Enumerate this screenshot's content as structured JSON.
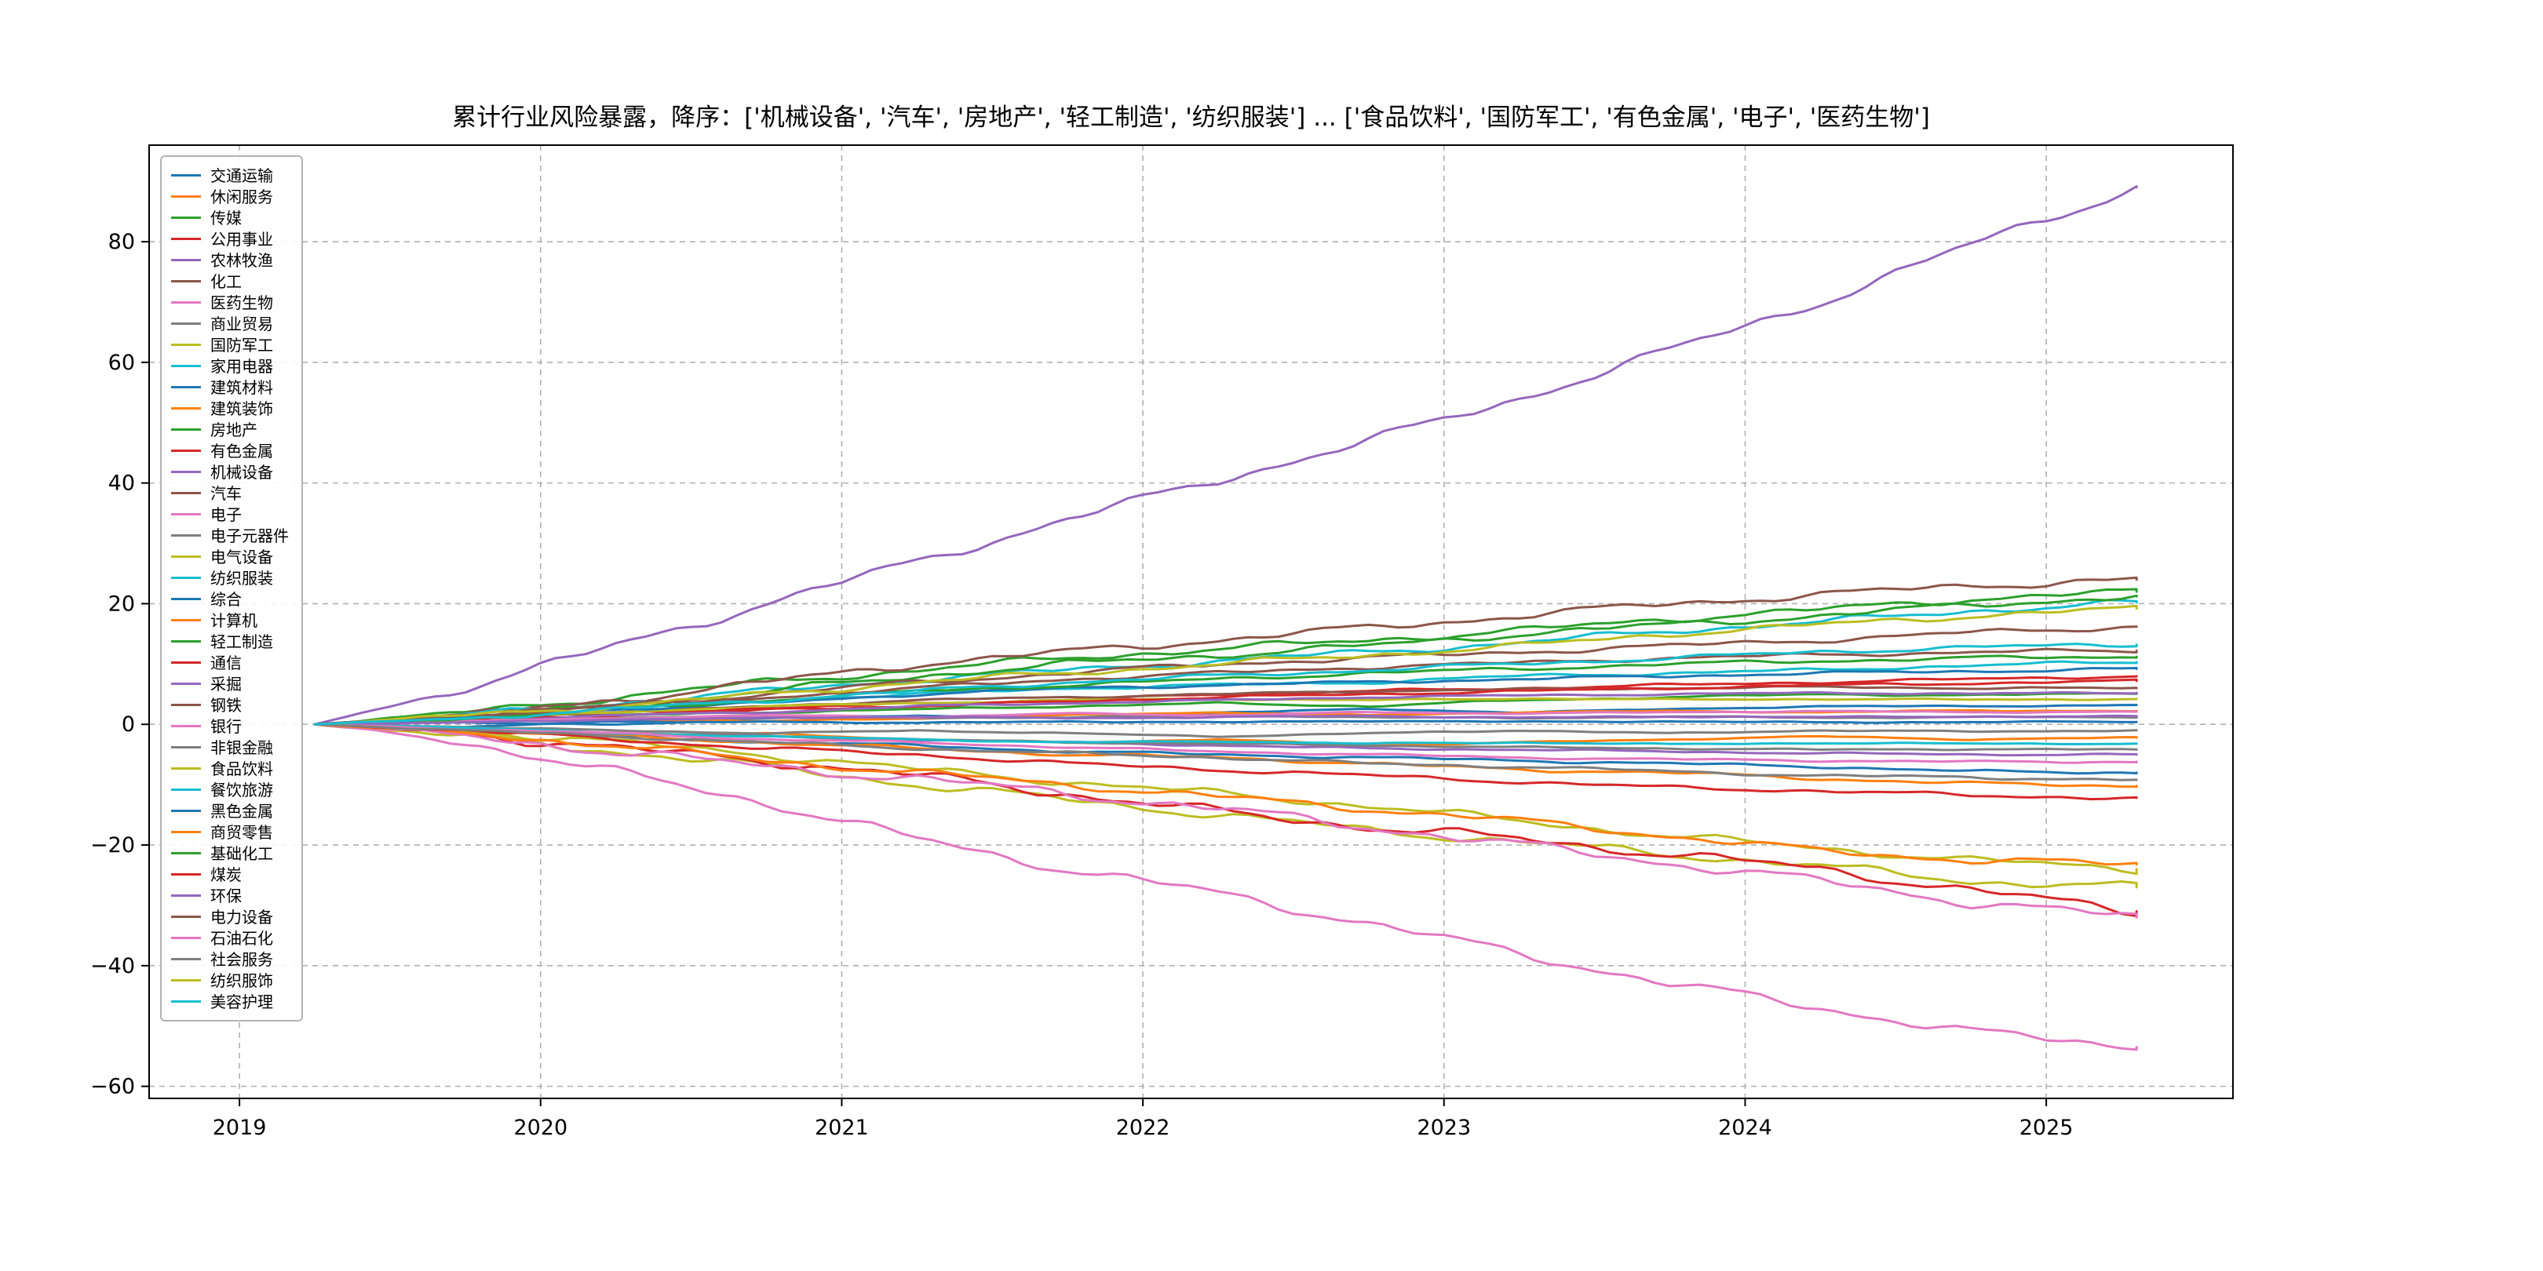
{
  "chart_data": {
    "type": "line",
    "title": "累计行业风险暴露，降序：['机械设备', '汽车', '房地产', '轻工制造', '纺织服装'] ... ['食品饮料', '国防军工', '有色金属', '电子', '医药生物']",
    "xlabel": "",
    "ylabel": "",
    "xlim": [
      2018.7,
      2025.62
    ],
    "ylim": [
      -62,
      96
    ],
    "x_ticks": [
      2019,
      2020,
      2021,
      2022,
      2023,
      2024,
      2025
    ],
    "y_ticks": [
      -60,
      -40,
      -20,
      0,
      20,
      40,
      60,
      80
    ],
    "grid": "dashed",
    "legend_position": "upper-left",
    "x": [
      2019.25,
      2019.75,
      2020.25,
      2020.75,
      2021.25,
      2021.75,
      2022.25,
      2022.75,
      2023.25,
      2023.75,
      2024.25,
      2024.75,
      2025.3
    ],
    "series": [
      {
        "name": "交通运输",
        "color": "#1f77b4",
        "values": [
          0,
          -0.5,
          0.5,
          1,
          1.5,
          1,
          2,
          2.5,
          2,
          2.5,
          3,
          3,
          3.2
        ]
      },
      {
        "name": "休闲服务",
        "color": "#ff7f0e",
        "values": [
          0,
          -1,
          -2,
          -1.5,
          -2.5,
          -3,
          -2.5,
          -3.5,
          -3,
          -2.5,
          -2,
          -2.5,
          -2.2
        ]
      },
      {
        "name": "传媒",
        "color": "#2ca02c",
        "values": [
          0,
          0.5,
          1.5,
          2,
          2.5,
          3,
          3.5,
          3,
          4,
          4.5,
          5,
          4.8,
          5.2
        ]
      },
      {
        "name": "公用事业",
        "color": "#d62728",
        "values": [
          0,
          1,
          2,
          2.5,
          3.5,
          4,
          5,
          5.5,
          6,
          6.5,
          7,
          7.5,
          8
        ]
      },
      {
        "name": "农林牧渔",
        "color": "#9467bd",
        "values": [
          0,
          -1,
          -1.5,
          -2,
          -2.5,
          -3,
          -3.5,
          -4,
          -4.2,
          -4.5,
          -4.8,
          -5,
          -5
        ]
      },
      {
        "name": "化工",
        "color": "#8c564b",
        "values": [
          0,
          1,
          2,
          3,
          4,
          4.5,
          5,
          5.5,
          5.8,
          6,
          6.2,
          6,
          6
        ]
      },
      {
        "name": "医药生物",
        "color": "#e377c2",
        "values": [
          0,
          -3,
          -8,
          -13,
          -19,
          -24,
          -28,
          -33,
          -38,
          -43,
          -47,
          -51,
          -53.5
        ]
      },
      {
        "name": "商业贸易",
        "color": "#7f7f7f",
        "values": [
          0,
          -0.5,
          -1,
          -1.5,
          -1,
          -1.5,
          -2,
          -1.5,
          -1,
          -1.5,
          -1,
          -1.2,
          -1
        ]
      },
      {
        "name": "国防军工",
        "color": "#bcbd22",
        "values": [
          0,
          -2,
          -4.5,
          -7,
          -10,
          -12.5,
          -15,
          -17.5,
          -19.5,
          -21.5,
          -23.5,
          -26,
          -27
        ]
      },
      {
        "name": "家用电器",
        "color": "#17becf",
        "values": [
          0,
          1,
          2.5,
          4,
          5,
          6,
          6.5,
          7,
          8,
          8.5,
          9,
          9.8,
          10.3
        ]
      },
      {
        "name": "建筑材料",
        "color": "#1f77b4",
        "values": [
          0,
          -1,
          -2,
          -3,
          -3.5,
          -4.5,
          -5,
          -5.5,
          -6,
          -6.5,
          -7,
          -7.8,
          -8
        ]
      },
      {
        "name": "建筑装饰",
        "color": "#ff7f0e",
        "values": [
          0,
          0.5,
          1,
          0.5,
          1,
          1.5,
          2,
          1.5,
          2,
          2.2,
          2,
          2.3,
          2.2
        ]
      },
      {
        "name": "房地产",
        "color": "#2ca02c",
        "values": [
          0,
          2,
          4.5,
          7,
          9,
          11,
          12.5,
          14,
          15.5,
          17.5,
          19,
          20.8,
          22
        ]
      },
      {
        "name": "有色金属",
        "color": "#d62728",
        "values": [
          0,
          -1.5,
          -4,
          -6,
          -8.5,
          -11.5,
          -14.5,
          -17,
          -19,
          -21.5,
          -24,
          -27.5,
          -31
        ]
      },
      {
        "name": "机械设备",
        "color": "#9467bd",
        "values": [
          0,
          6,
          13,
          20,
          27,
          34,
          40.5,
          47,
          54,
          62,
          70,
          79.5,
          89
        ]
      },
      {
        "name": "汽车",
        "color": "#8c564b",
        "values": [
          0,
          1.5,
          4,
          7,
          10,
          12,
          14,
          16,
          18,
          20,
          21.5,
          23,
          24
        ]
      },
      {
        "name": "电子",
        "color": "#e377c2",
        "values": [
          0,
          -2,
          -4.5,
          -7,
          -9,
          -11.5,
          -14,
          -17,
          -20,
          -23,
          -26,
          -29.5,
          -32
        ]
      },
      {
        "name": "电子元器件",
        "color": "#7f7f7f",
        "values": [
          0,
          0.5,
          1,
          1.5,
          1,
          1.2,
          1.5,
          1.2,
          1,
          1.3,
          1.1,
          1.2,
          1.2
        ]
      },
      {
        "name": "电气设备",
        "color": "#bcbd22",
        "values": [
          0,
          1,
          2,
          3,
          3.5,
          4,
          4.2,
          4,
          4.3,
          4.1,
          4.2,
          4.1,
          4.2
        ]
      },
      {
        "name": "纺织服装",
        "color": "#17becf",
        "values": [
          0,
          1.5,
          3.5,
          5.5,
          7.5,
          9,
          10.5,
          12,
          13.5,
          15.5,
          17,
          18.8,
          20.2
        ]
      },
      {
        "name": "综合",
        "color": "#1f77b4",
        "values": [
          0,
          0.3,
          0,
          0.5,
          0.2,
          0.5,
          0.3,
          0.6,
          0.4,
          0.5,
          0.3,
          0.4,
          0.4
        ]
      },
      {
        "name": "计算机",
        "color": "#ff7f0e",
        "values": [
          0,
          -1,
          -2,
          -3,
          -4,
          -5,
          -5.5,
          -6.5,
          -7.5,
          -8,
          -9,
          -9.8,
          -10.2
        ]
      },
      {
        "name": "轻工制造",
        "color": "#2ca02c",
        "values": [
          0,
          1,
          3,
          5.5,
          8,
          10,
          11.5,
          13,
          15,
          16.5,
          18,
          19.8,
          21.2
        ]
      },
      {
        "name": "通信",
        "color": "#d62728",
        "values": [
          0,
          0.8,
          1.5,
          2.5,
          3,
          3.8,
          4.5,
          5,
          5.5,
          6,
          6.5,
          6.8,
          7.2
        ]
      },
      {
        "name": "采掘",
        "color": "#9467bd",
        "values": [
          0,
          0.5,
          1.5,
          2,
          3,
          3.5,
          4,
          4.5,
          4.8,
          5,
          5.2,
          5.1,
          5.2
        ]
      },
      {
        "name": "钢铁",
        "color": "#8c564b",
        "values": [
          0,
          1.5,
          3,
          5,
          7,
          8.5,
          10,
          11,
          12,
          13,
          14,
          15.2,
          16.2
        ]
      },
      {
        "name": "银行",
        "color": "#e377c2",
        "values": [
          0,
          0.5,
          1,
          1.5,
          1.2,
          1.8,
          1.5,
          2,
          1.8,
          2,
          2.2,
          2,
          2.1
        ]
      },
      {
        "name": "非银金融",
        "color": "#7f7f7f",
        "values": [
          0,
          -0.5,
          -1.5,
          -2,
          -2.5,
          -3,
          -3.2,
          -3.5,
          -3.8,
          -4,
          -4.2,
          -4.1,
          -4.2
        ]
      },
      {
        "name": "食品饮料",
        "color": "#bcbd22",
        "values": [
          0,
          -1,
          -3,
          -5,
          -7.5,
          -9.5,
          -11.5,
          -13.5,
          -16,
          -18.5,
          -20.5,
          -22.5,
          -24
        ]
      },
      {
        "name": "餐饮旅游",
        "color": "#17becf",
        "values": [
          0,
          -0.5,
          -1.5,
          -2,
          -2.5,
          -3,
          -2.8,
          -3.2,
          -3,
          -3.3,
          -3.1,
          -3.2,
          -3.2
        ]
      },
      {
        "name": "黑色金属",
        "color": "#1f77b4",
        "values": [
          0,
          1,
          2.5,
          3.5,
          5,
          6,
          6.5,
          7,
          7.5,
          8,
          8.5,
          8.8,
          9.2
        ]
      },
      {
        "name": "商贸零售",
        "color": "#ff7f0e",
        "values": [
          0,
          -1.5,
          -3.5,
          -6,
          -8,
          -10,
          -12,
          -14,
          -16,
          -18.5,
          -21,
          -22.5,
          -23.2
        ]
      },
      {
        "name": "基础化工",
        "color": "#2ca02c",
        "values": [
          0,
          1,
          2.5,
          4,
          5.5,
          6.5,
          7.5,
          8.5,
          9.2,
          10,
          10.5,
          11,
          11.2
        ]
      },
      {
        "name": "煤炭",
        "color": "#d62728",
        "values": [
          0,
          -1,
          -2.5,
          -4,
          -5,
          -6.5,
          -7.5,
          -8.5,
          -9.5,
          -10.5,
          -11,
          -11.8,
          -12.2
        ]
      },
      {
        "name": "环保",
        "color": "#9467bd",
        "values": [
          0,
          0.3,
          0.8,
          1,
          1.3,
          1,
          1.2,
          1.4,
          1.1,
          1.3,
          1.2,
          1.3,
          1.3
        ]
      },
      {
        "name": "电力设备",
        "color": "#8c564b",
        "values": [
          0,
          1.5,
          3,
          4.5,
          6,
          7.5,
          8.5,
          9.5,
          10.2,
          11,
          11.5,
          12,
          12.2
        ]
      },
      {
        "name": "石油石化",
        "color": "#e377c2",
        "values": [
          0,
          -0.8,
          -1.5,
          -2.5,
          -3,
          -3.8,
          -4.5,
          -5,
          -5.5,
          -5.8,
          -6,
          -6.2,
          -6.2
        ]
      },
      {
        "name": "社会服务",
        "color": "#7f7f7f",
        "values": [
          0,
          -1,
          -2,
          -3,
          -4,
          -4.8,
          -5.5,
          -6.5,
          -7,
          -7.8,
          -8.5,
          -8.8,
          -9.2
        ]
      },
      {
        "name": "纺织服饰",
        "color": "#bcbd22",
        "values": [
          0,
          1.5,
          3,
          5,
          7,
          8.5,
          10,
          11.5,
          13,
          15,
          16.5,
          18,
          19.2
        ]
      },
      {
        "name": "美容护理",
        "color": "#17becf",
        "values": [
          0,
          1,
          2.5,
          4,
          5.5,
          7,
          8,
          9,
          10,
          11,
          12,
          12.8,
          13.2
        ]
      }
    ]
  }
}
